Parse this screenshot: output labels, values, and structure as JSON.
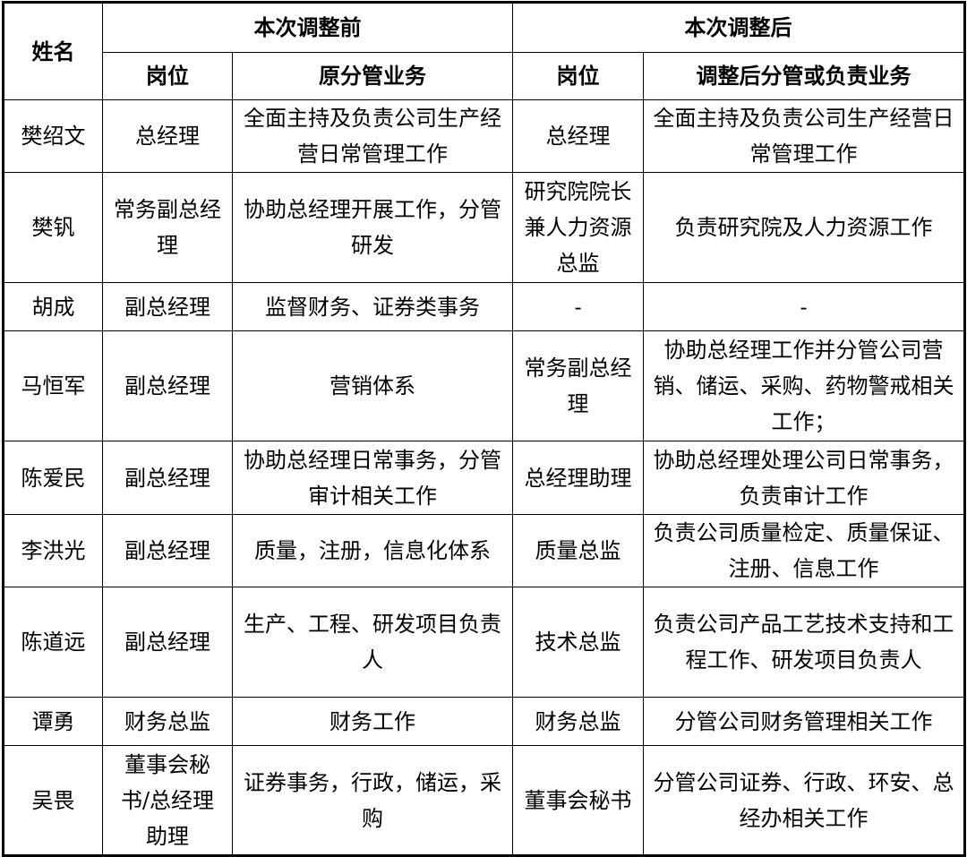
{
  "headers": {
    "name": "姓名",
    "before": "本次调整前",
    "after": "本次调整后",
    "position_before": "岗位",
    "duty_before": "原分管业务",
    "position_after": "岗位",
    "duty_after": "调整后分管或负责业务"
  },
  "rows": [
    {
      "name": "樊绍文",
      "pos_before": "总经理",
      "duty_before": "全面主持及负责公司生产经营日常管理工作",
      "pos_after": "总经理",
      "duty_after": "全面主持及负责公司生产经营日常管理工作"
    },
    {
      "name": "樊钒",
      "pos_before": "常务副总经理",
      "duty_before": "协助总经理开展工作，分管研发",
      "pos_after": "研究院院长兼人力资源总监",
      "duty_after": "负责研究院及人力资源工作"
    },
    {
      "name": "胡成",
      "pos_before": "副总经理",
      "duty_before": "监督财务、证券类事务",
      "pos_after": "-",
      "duty_after": "-"
    },
    {
      "name": "马恒军",
      "pos_before": "副总经理",
      "duty_before": "营销体系",
      "pos_after": "常务副总经理",
      "duty_after": "协助总经理工作并分管公司营销、储运、采购、药物警戒相关工作；"
    },
    {
      "name": "陈爱民",
      "pos_before": "副总经理",
      "duty_before": "协助总经理日常事务，分管审计相关工作",
      "pos_after": "总经理助理",
      "duty_after": "协助总经理处理公司日常事务，负责审计工作"
    },
    {
      "name": "李洪光",
      "pos_before": "副总经理",
      "duty_before": "质量，注册，信息化体系",
      "pos_after": "质量总监",
      "duty_after": "负责公司质量检定、质量保证、注册、信息工作"
    },
    {
      "name": "陈道远",
      "pos_before": "副总经理",
      "duty_before": "生产、工程、研发项目负责人",
      "pos_after": "技术总监",
      "duty_after": "负责公司产品工艺技术支持和工程工作、研发项目负责人"
    },
    {
      "name": "谭勇",
      "pos_before": "财务总监",
      "duty_before": "财务工作",
      "pos_after": "财务总监",
      "duty_after": "分管公司财务管理相关工作"
    },
    {
      "name": "吴畏",
      "pos_before": "董事会秘书/总经理助理",
      "duty_before": "证券事务，行政，储运，采购",
      "pos_after": "董事会秘书",
      "duty_after": "分管公司证券、行政、环安、总经办相关工作"
    }
  ]
}
